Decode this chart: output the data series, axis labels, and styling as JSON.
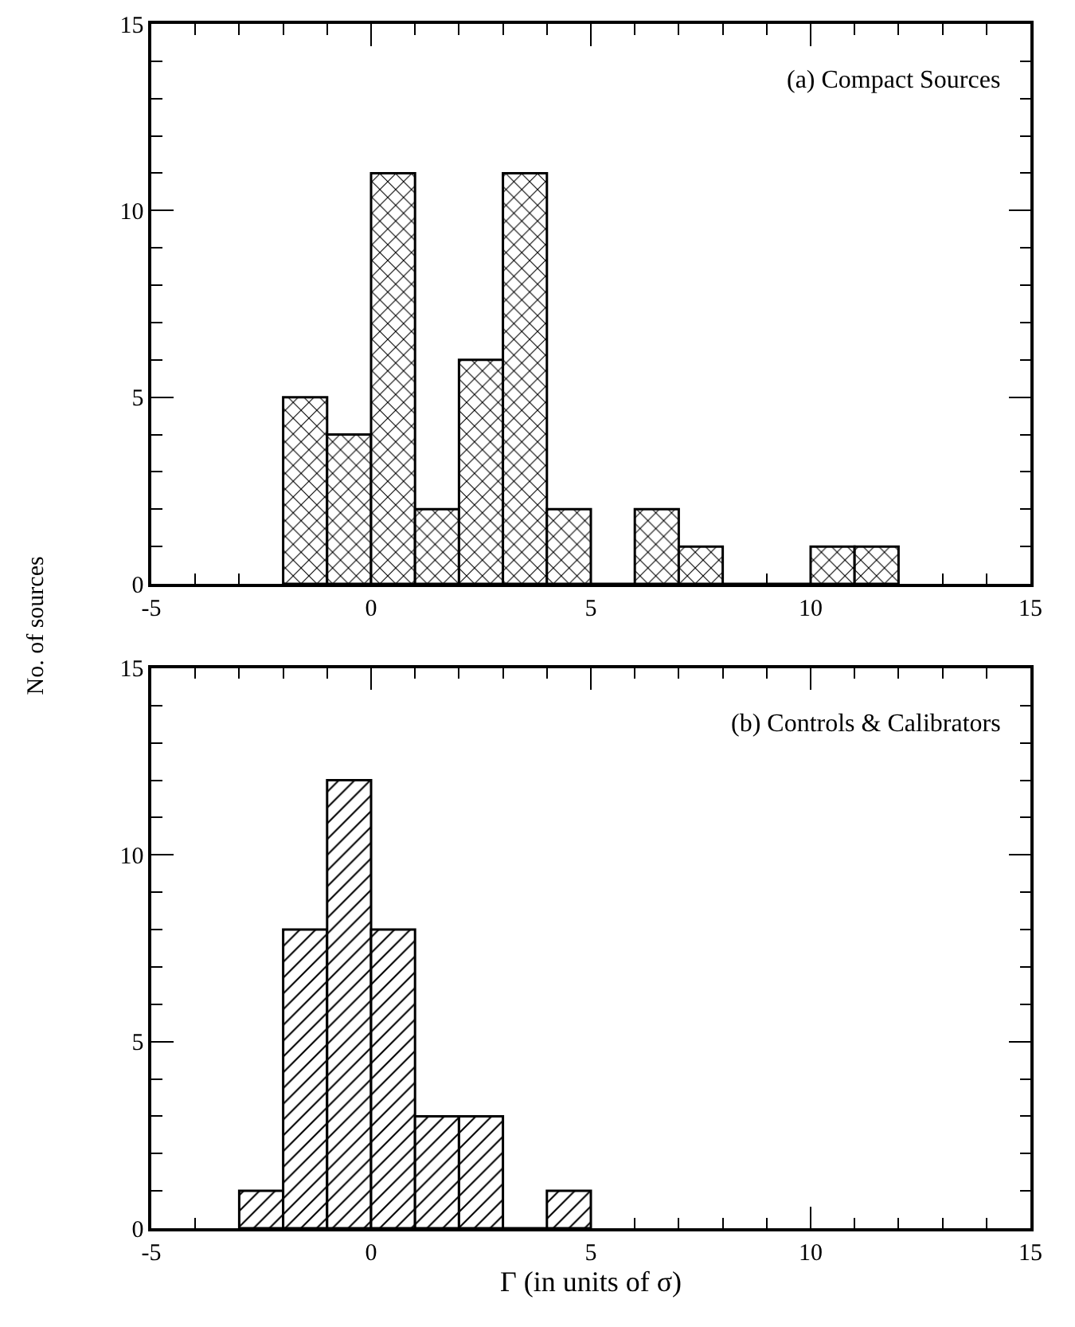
{
  "chart_data": [
    {
      "type": "histogram",
      "bins": [
        -2,
        -1,
        0,
        1,
        2,
        3,
        4,
        5,
        6,
        7,
        8,
        9,
        10,
        11,
        12
      ],
      "values": [
        5,
        4,
        11,
        2,
        6,
        11,
        2,
        0,
        2,
        1,
        0,
        0,
        1,
        1
      ],
      "color": "#000000",
      "xlim": [
        -5,
        15
      ],
      "xticks": [
        -5,
        0,
        5,
        10,
        15
      ],
      "ylim": [
        0,
        15
      ],
      "yticks": [
        0,
        5,
        10,
        15
      ],
      "ylabel": "No. of sources",
      "annotations": [
        "(a) Compact Sources"
      ]
    },
    {
      "type": "histogram",
      "bins": [
        -3,
        -2,
        -1,
        0,
        1,
        2,
        3,
        4,
        5
      ],
      "values": [
        1,
        8,
        12,
        8,
        3,
        3,
        0,
        1
      ],
      "color": "#000000",
      "xlim": [
        -5,
        15
      ],
      "xticks": [
        -5,
        0,
        5,
        10,
        15
      ],
      "ylim": [
        0,
        15
      ],
      "yticks": [
        0,
        5,
        10,
        15
      ],
      "xlabel": "Γ (in units of σ)",
      "annotations": [
        "(b) Controls & Calibrators"
      ]
    }
  ]
}
